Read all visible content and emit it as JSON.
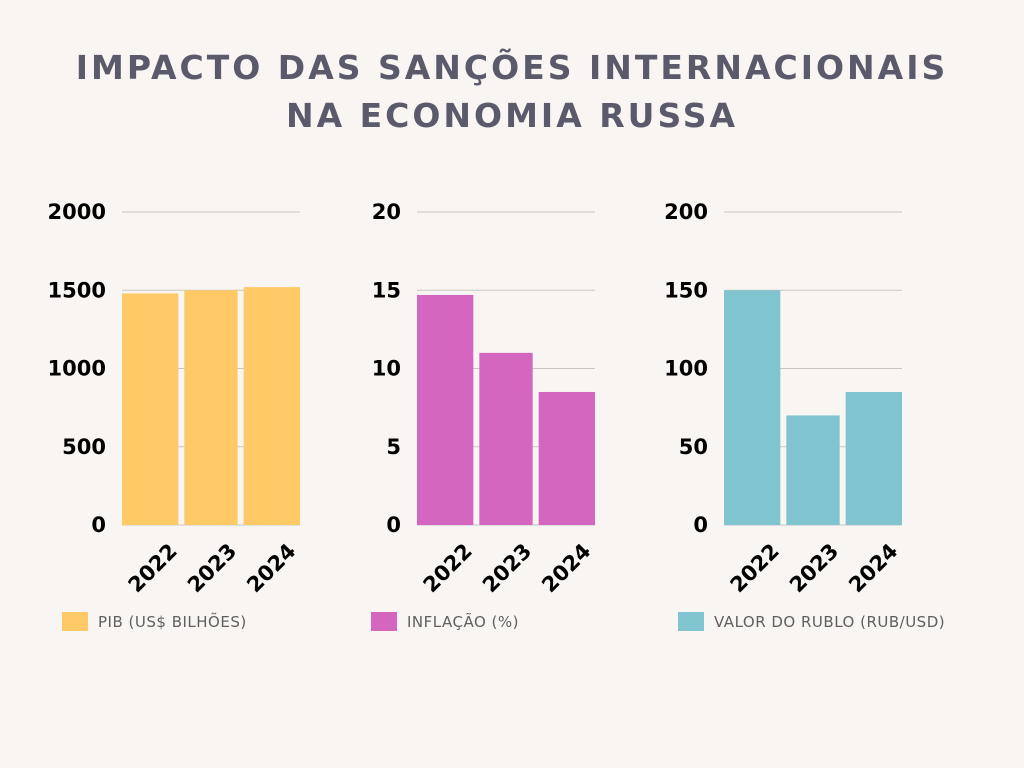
{
  "title": {
    "line1": "IMPACTO DAS SANÇÕES INTERNACIONAIS",
    "line2": "NA ECONOMIA RUSSA"
  },
  "chart_data": [
    {
      "type": "bar",
      "categories": [
        "2022",
        "2023",
        "2024"
      ],
      "series": [
        {
          "name": "PIB (US$ BILHÕES)",
          "values": [
            1480,
            1500,
            1520
          ],
          "color": "#ffca66"
        }
      ],
      "yticks": [
        "0",
        "500",
        "1000",
        "1500",
        "2000"
      ],
      "ylim": [
        0,
        2000
      ],
      "grid": true,
      "legend": "bottom"
    },
    {
      "type": "bar",
      "categories": [
        "2022",
        "2023",
        "2024"
      ],
      "series": [
        {
          "name": "INFLAÇÃO (%)",
          "values": [
            14.7,
            11,
            8.5
          ],
          "color": "#d566bf"
        }
      ],
      "yticks": [
        "0",
        "5",
        "10",
        "15",
        "20"
      ],
      "ylim": [
        0,
        20
      ],
      "grid": true,
      "legend": "bottom"
    },
    {
      "type": "bar",
      "categories": [
        "2022",
        "2023",
        "2024"
      ],
      "series": [
        {
          "name": "VALOR DO RUBLO (RUB/USD)",
          "values": [
            150,
            70,
            85
          ],
          "color": "#7fc4ce"
        }
      ],
      "yticks": [
        "0",
        "50",
        "100",
        "150",
        "200"
      ],
      "ylim": [
        0,
        200
      ],
      "grid": true,
      "legend": "bottom"
    }
  ]
}
